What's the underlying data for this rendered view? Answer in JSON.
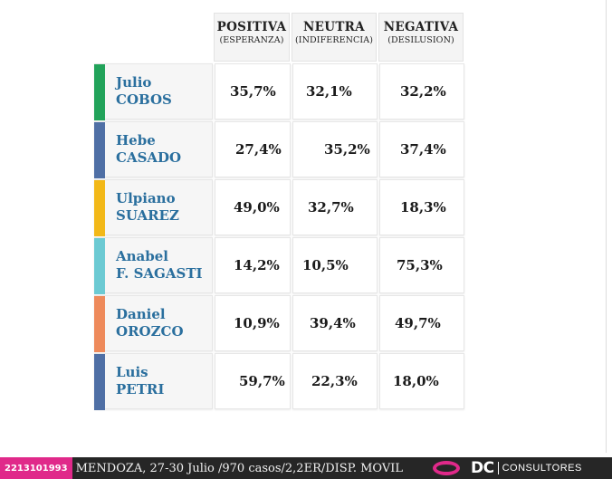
{
  "chart_data": {
    "type": "table",
    "columns": [
      {
        "title": "POSITIVA",
        "subtitle": "(ESPERANZA)"
      },
      {
        "title": "NEUTRA",
        "subtitle": "(INDIFERENCIA)"
      },
      {
        "title": "NEGATIVA",
        "subtitle": "(DESILUSION)"
      }
    ],
    "rows": [
      {
        "first": "Julio",
        "last": "COBOS",
        "color": "#22a35a",
        "values": [
          "35,7%",
          "32,1%",
          "32,2%"
        ]
      },
      {
        "first": "Hebe",
        "last": "CASADO",
        "color": "#4f6fa5",
        "values": [
          "27,4%",
          "35,2%",
          "37,4%"
        ]
      },
      {
        "first": "Ulpiano",
        "last": "SUAREZ",
        "color": "#f2b818",
        "values": [
          "49,0%",
          "32,7%",
          "18,3%"
        ]
      },
      {
        "first": "Anabel",
        "last": "F. SAGASTI",
        "color": "#6ccad3",
        "values": [
          "14,2%",
          "10,5%",
          "75,3%"
        ]
      },
      {
        "first": "Daniel",
        "last": "OROZCO",
        "color": "#ee8a5b",
        "values": [
          "10,9%",
          "39,4%",
          "49,7%"
        ]
      },
      {
        "first": "Luis",
        "last": "PETRI",
        "color": "#4f6fa5",
        "values": [
          "59,7%",
          "22,3%",
          "18,0%"
        ]
      }
    ]
  },
  "footer": {
    "phone": "2213101993",
    "info": "MENDOZA, 27-30 Julio /970 casos/2,2ER/DISP. MOVIL",
    "logo_main": "DC",
    "logo_sub": "CONSULTORES",
    "accent_color": "#e0298a"
  }
}
